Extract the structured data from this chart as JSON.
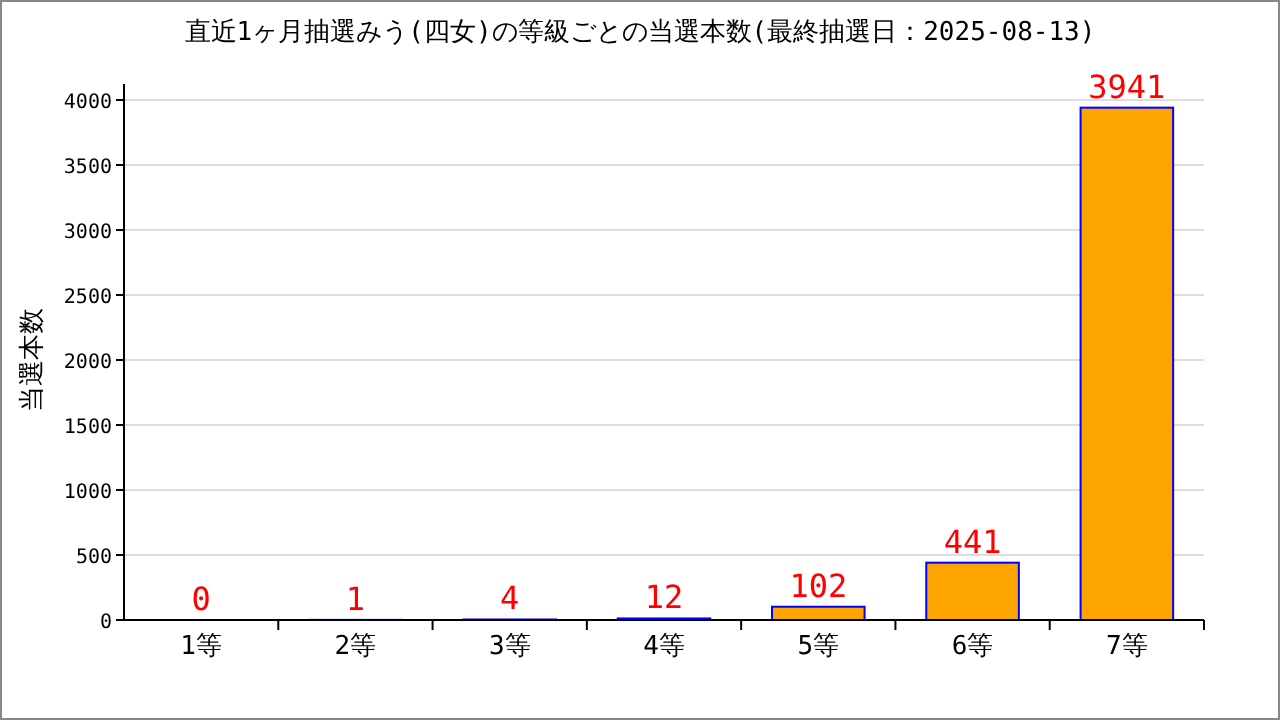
{
  "chart_data": {
    "type": "bar",
    "title": "直近1ヶ月抽選みう(四女)の等級ごとの当選本数(最終抽選日：2025-08-13)",
    "ylabel": "当選本数",
    "categories": [
      "1等",
      "2等",
      "3等",
      "4等",
      "5等",
      "6等",
      "7等"
    ],
    "values": [
      0,
      1,
      4,
      12,
      102,
      441,
      3941
    ],
    "color": "#ffa500",
    "ylim": [
      0,
      4000
    ],
    "yticks": [
      0,
      500,
      1000,
      1500,
      2000,
      2500,
      3000,
      3500,
      4000
    ],
    "grid": "y",
    "data_labels": true
  }
}
